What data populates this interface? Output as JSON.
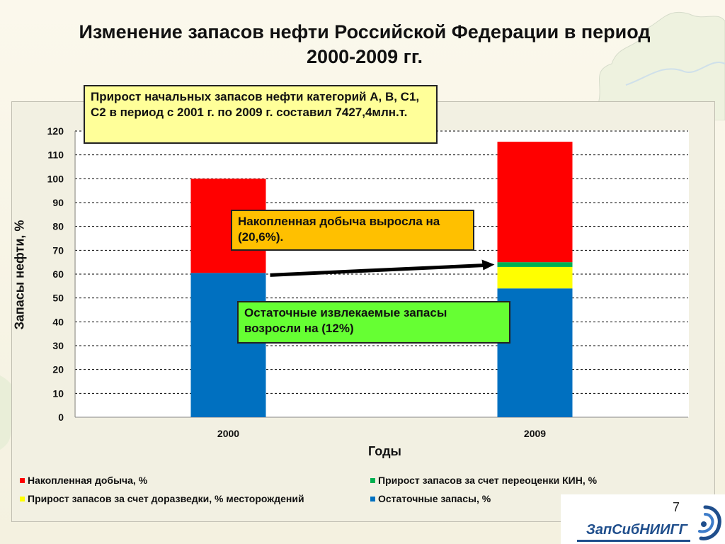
{
  "title": "Изменение запасов нефти Российской Федерации в период 2000-2009 гг.",
  "callouts": {
    "main": "Прирост начальных запасов нефти категорий А, В, С1, С2 в период с 2001 г. по 2009 г. составил 7427,4млн.т.",
    "production": "Накопленная добыча выросла на (20,6%).",
    "remaining": "Остаточные извлекаемые запасы возросли на (12%)"
  },
  "page_number": "7",
  "logo_text": "ЗапСибНИИГГ",
  "colors": {
    "production": "#ff0000",
    "reassessment": "#00b050",
    "exploration": "#ffff00",
    "remaining": "#0070c0"
  },
  "chart_data": {
    "type": "bar",
    "stacked": true,
    "categories": [
      "2000",
      "2009"
    ],
    "series": [
      {
        "name": "Остаточные запасы, %",
        "values": [
          60.5,
          54
        ]
      },
      {
        "name": "Прирост запасов за счет доразведки, % месторождений",
        "values": [
          0,
          9
        ]
      },
      {
        "name": "Прирост запасов за счет переоценки КИН, %",
        "values": [
          0,
          2
        ]
      },
      {
        "name": "Накопленная добыча, %",
        "values": [
          39.5,
          50.5
        ]
      }
    ],
    "xlabel": "Годы",
    "ylabel": "Запасы нефти, %",
    "ylim": [
      0,
      120
    ],
    "yticks": [
      0,
      10,
      20,
      30,
      40,
      50,
      60,
      70,
      80,
      90,
      100,
      110,
      120
    ],
    "grid": true,
    "legend_position": "bottom",
    "legend_order": [
      "Накопленная добыча, %",
      "Прирост запасов за счет переоценки КИН, %",
      "Прирост запасов за счет доразведки, % месторождений",
      "Остаточные запасы, %"
    ]
  }
}
